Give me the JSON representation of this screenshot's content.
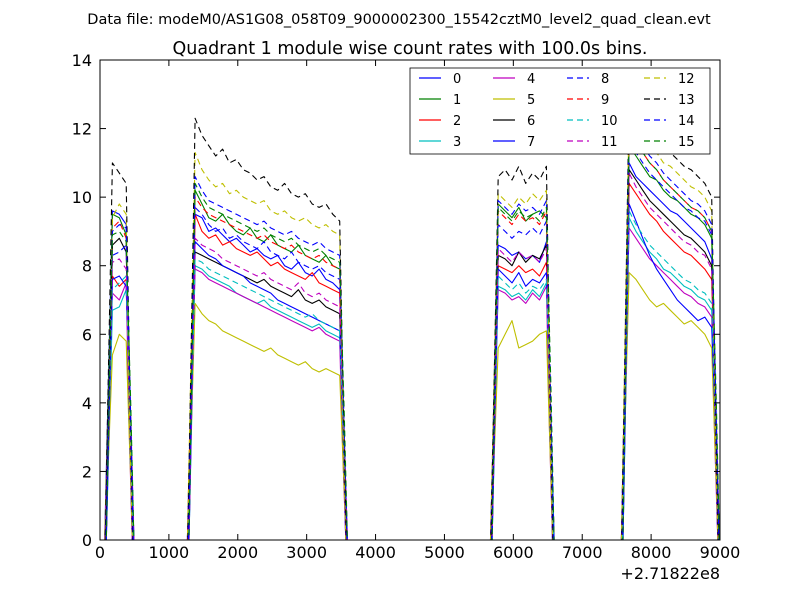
{
  "figure": {
    "suptitle": "Data file: modeM0/AS1G08_058T09_9000002300_15542cztM0_level2_quad_clean.evt",
    "title": "Quadrant 1 module wise count rates with 100.0s bins.",
    "x_offset_label": "+2.71822e8"
  },
  "chart_data": {
    "type": "line",
    "title": "Quadrant 1 module wise count rates with 100.0s bins.",
    "xlabel": "",
    "ylabel": "",
    "xlim": [
      0,
      9000
    ],
    "ylim": [
      0,
      14
    ],
    "x_ticks": [
      "0",
      "1000",
      "2000",
      "3000",
      "4000",
      "5000",
      "6000",
      "7000",
      "8000",
      "9000"
    ],
    "y_ticks": [
      "0",
      "2",
      "4",
      "6",
      "8",
      "10",
      "12",
      "14"
    ],
    "grid": false,
    "legend_position": "top-right",
    "legend_columns": 4,
    "x_offset": "+2.71822e8",
    "segments": [
      {
        "start": 180,
        "len": 3
      },
      {
        "start": 1380,
        "len": 22
      },
      {
        "start": 5780,
        "len": 8
      },
      {
        "start": 7680,
        "len": 13
      }
    ],
    "series": [
      {
        "name": "0",
        "color": "#0000ff",
        "dash": "solid",
        "seg": [
          [
            9.6,
            9.5,
            9.2
          ],
          [
            9.5,
            9.4,
            9.0,
            9.1,
            8.9,
            8.7,
            8.8,
            8.6,
            8.4,
            8.5,
            8.3,
            8.2,
            8.3,
            8.0,
            7.9,
            8.1,
            7.8,
            7.7,
            7.9,
            7.6,
            7.5,
            7.3
          ],
          [
            8.6,
            8.5,
            8.3,
            8.4,
            8.2,
            8.3,
            8.1,
            8.7
          ],
          [
            11.0,
            10.6,
            10.4,
            10.2,
            10.0,
            9.8,
            9.6,
            9.5,
            9.3,
            9.1,
            8.9,
            8.7,
            8.2
          ]
        ]
      },
      {
        "name": "1",
        "color": "#008000",
        "dash": "solid",
        "seg": [
          [
            9.5,
            9.4,
            8.9
          ],
          [
            10.2,
            9.8,
            9.4,
            9.3,
            9.5,
            9.2,
            9.0,
            8.9,
            9.1,
            8.8,
            8.7,
            8.9,
            8.6,
            8.5,
            8.4,
            8.6,
            8.3,
            8.2,
            8.1,
            8.3,
            8.0,
            7.9
          ],
          [
            9.8,
            9.6,
            9.4,
            9.7,
            9.3,
            9.5,
            9.6,
            9.4
          ],
          [
            11.5,
            11.2,
            10.9,
            10.6,
            10.5,
            10.2,
            10.0,
            9.9,
            9.7,
            9.5,
            9.4,
            9.2,
            8.8
          ]
        ]
      },
      {
        "name": "2",
        "color": "#ff0000",
        "dash": "solid",
        "seg": [
          [
            7.7,
            7.4,
            7.6
          ],
          [
            9.5,
            9.0,
            8.8,
            8.9,
            8.6,
            8.7,
            8.5,
            8.4,
            8.3,
            8.4,
            8.2,
            8.0,
            8.1,
            7.9,
            7.8,
            7.7,
            7.6,
            7.8,
            7.5,
            7.4,
            7.3,
            7.2
          ],
          [
            8.0,
            7.9,
            7.8,
            8.0,
            7.8,
            7.9,
            7.7,
            8.1
          ],
          [
            10.4,
            10.1,
            9.8,
            9.5,
            9.3,
            9.0,
            8.8,
            8.6,
            8.4,
            8.3,
            8.1,
            7.9,
            7.6
          ]
        ]
      },
      {
        "name": "3",
        "color": "#00bfbf",
        "dash": "solid",
        "seg": [
          [
            6.7,
            6.8,
            7.3
          ],
          [
            8.0,
            7.9,
            7.7,
            7.6,
            7.5,
            7.4,
            7.2,
            7.1,
            7.0,
            6.9,
            7.0,
            6.8,
            6.7,
            6.6,
            6.5,
            6.4,
            6.3,
            6.2,
            6.3,
            6.1,
            6.0,
            5.9
          ],
          [
            7.4,
            7.3,
            7.1,
            7.2,
            7.0,
            7.3,
            7.1,
            7.5
          ],
          [
            9.4,
            9.0,
            8.7,
            8.4,
            8.2,
            7.9,
            7.8,
            7.6,
            7.4,
            7.3,
            7.1,
            7.0,
            6.7
          ]
        ]
      },
      {
        "name": "4",
        "color": "#bf00bf",
        "dash": "solid",
        "seg": [
          [
            7.2,
            7.0,
            7.5
          ],
          [
            7.9,
            7.8,
            7.6,
            7.5,
            7.4,
            7.3,
            7.2,
            7.1,
            7.0,
            6.9,
            6.8,
            6.7,
            6.6,
            6.5,
            6.4,
            6.3,
            6.2,
            6.1,
            6.2,
            6.0,
            5.9,
            5.8
          ],
          [
            7.3,
            7.2,
            7.0,
            7.1,
            6.9,
            7.2,
            7.0,
            7.4
          ],
          [
            9.1,
            8.8,
            8.5,
            8.2,
            8.0,
            7.8,
            7.6,
            7.4,
            7.2,
            7.1,
            6.9,
            6.8,
            6.5
          ]
        ]
      },
      {
        "name": "5",
        "color": "#bfbf00",
        "dash": "solid",
        "seg": [
          [
            5.4,
            6.0,
            5.8
          ],
          [
            6.9,
            6.6,
            6.4,
            6.3,
            6.1,
            6.0,
            5.9,
            5.8,
            5.7,
            5.6,
            5.5,
            5.6,
            5.4,
            5.3,
            5.2,
            5.1,
            5.2,
            5.0,
            4.9,
            5.0,
            4.9,
            4.8
          ],
          [
            5.6,
            6.0,
            6.4,
            5.6,
            5.7,
            5.8,
            6.0,
            6.1
          ],
          [
            7.8,
            7.6,
            7.3,
            7.0,
            6.8,
            6.9,
            6.7,
            6.5,
            6.3,
            6.4,
            6.2,
            6.0,
            5.6
          ]
        ]
      },
      {
        "name": "6",
        "color": "#000000",
        "dash": "solid",
        "seg": [
          [
            8.6,
            8.8,
            8.4
          ],
          [
            8.4,
            8.3,
            8.2,
            8.1,
            8.0,
            7.9,
            7.8,
            7.7,
            7.6,
            7.5,
            7.6,
            7.4,
            7.3,
            7.2,
            7.1,
            7.3,
            7.0,
            6.9,
            7.0,
            6.8,
            6.7,
            6.6
          ],
          [
            8.3,
            8.2,
            8.0,
            8.4,
            8.1,
            8.3,
            8.2,
            8.6
          ],
          [
            10.8,
            10.5,
            10.2,
            9.9,
            9.7,
            9.5,
            9.3,
            9.1,
            8.9,
            8.8,
            8.6,
            8.4,
            8.0
          ]
        ]
      },
      {
        "name": "7",
        "color": "#0000ff",
        "dash": "solid",
        "seg": [
          [
            7.6,
            7.7,
            7.4
          ],
          [
            8.7,
            8.5,
            8.3,
            8.2,
            8.0,
            7.9,
            7.8,
            7.7,
            7.5,
            7.4,
            7.3,
            7.2,
            7.0,
            6.9,
            6.8,
            6.7,
            6.6,
            6.5,
            6.4,
            6.3,
            6.2,
            6.1
          ],
          [
            7.9,
            7.7,
            7.5,
            7.8,
            7.4,
            7.6,
            7.5,
            7.8
          ],
          [
            9.8,
            9.3,
            8.8,
            8.3,
            7.9,
            7.6,
            7.3,
            7.0,
            6.8,
            6.6,
            6.4,
            6.5,
            6.2
          ]
        ]
      },
      {
        "name": "8",
        "color": "#0000ff",
        "dash": "dashed",
        "seg": [
          [
            8.3,
            8.4,
            8.6
          ],
          [
            9.7,
            9.5,
            9.2,
            9.0,
            9.1,
            8.8,
            8.9,
            8.7,
            8.6,
            8.5,
            8.7,
            8.4,
            8.3,
            8.2,
            8.4,
            8.1,
            8.0,
            7.9,
            8.0,
            7.8,
            7.7,
            7.6
          ],
          [
            9.2,
            9.0,
            8.8,
            9.0,
            8.9,
            9.1,
            8.9,
            9.3
          ],
          [
            11.6,
            11.3,
            11.0,
            10.7,
            10.5,
            10.3,
            10.1,
            9.9,
            9.7,
            9.6,
            9.4,
            9.3,
            8.9
          ]
        ]
      },
      {
        "name": "9",
        "color": "#ff0000",
        "dash": "dashed",
        "seg": [
          [
            9.1,
            9.3,
            8.8
          ],
          [
            10.0,
            9.7,
            9.5,
            9.4,
            9.3,
            9.2,
            9.1,
            9.0,
            8.9,
            8.8,
            8.9,
            8.7,
            8.6,
            8.5,
            8.6,
            8.4,
            8.3,
            8.2,
            8.3,
            8.1,
            8.0,
            7.9
          ],
          [
            9.6,
            9.4,
            9.2,
            9.5,
            9.3,
            9.4,
            9.2,
            9.6
          ],
          [
            12.0,
            11.6,
            11.3,
            11.0,
            10.8,
            10.5,
            10.3,
            10.1,
            9.9,
            9.7,
            9.6,
            9.4,
            9.0
          ]
        ]
      },
      {
        "name": "10",
        "color": "#00bfbf",
        "dash": "dashed",
        "seg": [
          [
            7.3,
            7.5,
            7.7
          ],
          [
            8.2,
            8.1,
            7.9,
            7.8,
            7.7,
            7.6,
            7.5,
            7.4,
            7.3,
            7.2,
            7.1,
            7.0,
            6.9,
            6.8,
            6.7,
            6.6,
            6.5,
            6.6,
            6.4,
            6.3,
            6.2,
            6.1
          ],
          [
            7.7,
            7.5,
            7.3,
            7.5,
            7.2,
            7.4,
            7.3,
            7.6
          ],
          [
            9.6,
            9.2,
            8.9,
            8.6,
            8.4,
            8.2,
            8.0,
            7.8,
            7.6,
            7.5,
            7.3,
            7.2,
            6.9
          ]
        ]
      },
      {
        "name": "11",
        "color": "#bf00bf",
        "dash": "dashed",
        "seg": [
          [
            8.1,
            8.2,
            7.9
          ],
          [
            8.8,
            8.6,
            8.5,
            8.4,
            8.2,
            8.1,
            8.0,
            7.9,
            7.8,
            7.7,
            7.8,
            7.6,
            7.5,
            7.4,
            7.3,
            7.5,
            7.2,
            7.1,
            7.2,
            7.0,
            6.9,
            6.8
          ],
          [
            8.5,
            8.3,
            8.1,
            8.4,
            8.2,
            8.3,
            8.1,
            8.5
          ],
          [
            10.7,
            10.3,
            10.0,
            9.7,
            9.5,
            9.3,
            9.1,
            8.9,
            8.7,
            8.6,
            8.4,
            8.3,
            7.9
          ]
        ]
      },
      {
        "name": "12",
        "color": "#bfbf00",
        "dash": "dashed",
        "seg": [
          [
            9.4,
            9.8,
            9.5
          ],
          [
            11.3,
            10.8,
            10.5,
            10.3,
            10.4,
            10.1,
            10.2,
            10.0,
            9.9,
            9.8,
            9.9,
            9.6,
            9.5,
            9.6,
            9.4,
            9.3,
            9.4,
            9.2,
            9.1,
            9.2,
            9.0,
            8.9
          ],
          [
            10.1,
            9.9,
            9.7,
            10.0,
            9.8,
            10.1,
            9.9,
            10.2
          ],
          [
            12.4,
            12.1,
            11.8,
            11.5,
            11.3,
            11.0,
            10.9,
            10.7,
            10.5,
            10.3,
            10.2,
            10.0,
            9.6
          ]
        ]
      },
      {
        "name": "13",
        "color": "#000000",
        "dash": "dashed",
        "seg": [
          [
            11.0,
            10.7,
            10.4
          ],
          [
            12.3,
            11.8,
            11.5,
            11.2,
            11.4,
            11.0,
            11.1,
            10.8,
            10.7,
            10.5,
            10.6,
            10.3,
            10.2,
            10.4,
            10.1,
            10.0,
            10.1,
            9.8,
            9.7,
            9.8,
            9.5,
            9.3
          ],
          [
            10.6,
            10.8,
            10.5,
            10.9,
            10.4,
            10.7,
            10.5,
            10.9
          ],
          [
            12.9,
            12.6,
            12.3,
            12.0,
            11.8,
            11.5,
            11.3,
            11.1,
            10.9,
            10.8,
            10.6,
            10.4,
            10.0
          ]
        ]
      },
      {
        "name": "14",
        "color": "#0000ff",
        "dash": "dashed",
        "seg": [
          [
            9.0,
            9.2,
            9.1
          ],
          [
            10.6,
            10.2,
            9.9,
            9.8,
            9.7,
            9.6,
            9.5,
            9.4,
            9.3,
            9.2,
            9.3,
            9.1,
            9.0,
            8.9,
            9.0,
            8.8,
            8.7,
            8.6,
            8.7,
            8.5,
            8.4,
            8.3
          ],
          [
            9.9,
            9.7,
            9.5,
            9.8,
            9.6,
            9.7,
            9.5,
            9.9
          ],
          [
            12.2,
            11.8,
            11.5,
            11.2,
            11.0,
            10.7,
            10.5,
            10.3,
            10.1,
            9.9,
            9.8,
            9.6,
            9.2
          ]
        ]
      },
      {
        "name": "15",
        "color": "#008000",
        "dash": "dashed",
        "seg": [
          [
            8.9,
            9.0,
            8.7
          ],
          [
            10.4,
            10.0,
            9.7,
            9.6,
            9.5,
            9.4,
            9.3,
            9.2,
            9.1,
            9.0,
            9.1,
            8.9,
            8.8,
            8.7,
            8.8,
            8.6,
            8.5,
            8.4,
            8.5,
            8.3,
            8.2,
            8.1
          ],
          [
            9.7,
            9.5,
            9.3,
            9.6,
            9.4,
            9.5,
            9.3,
            9.7
          ],
          [
            12.0,
            11.6,
            11.3,
            11.0,
            10.8,
            10.5,
            10.3,
            10.1,
            9.9,
            9.7,
            9.6,
            9.4,
            9.0
          ]
        ]
      }
    ]
  }
}
